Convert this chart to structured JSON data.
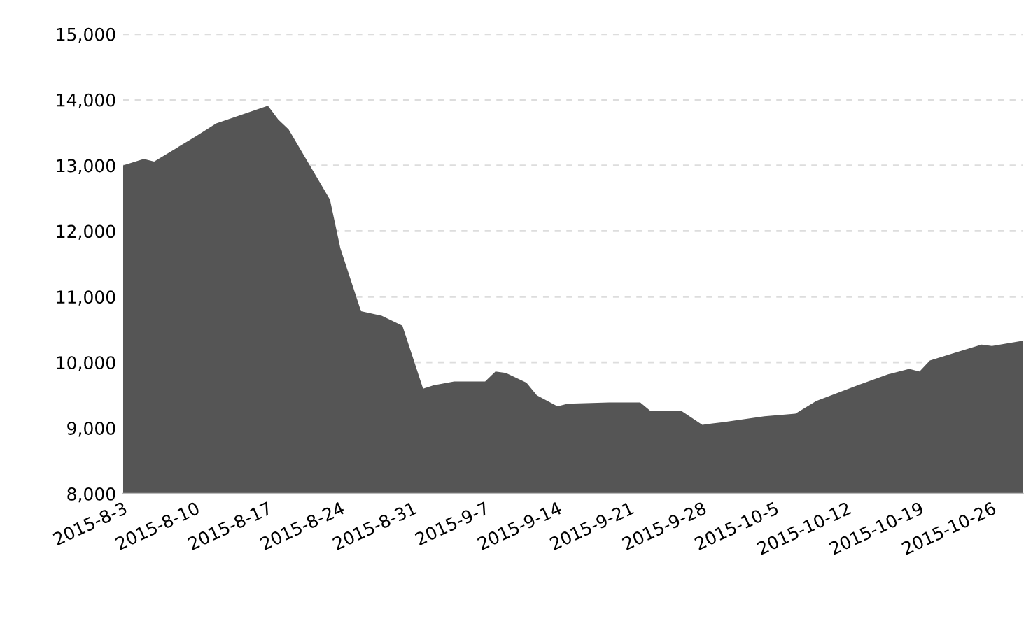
{
  "chart_data": {
    "type": "area",
    "color": "#555555",
    "x": [
      "2015-08-03",
      "2015-08-05",
      "2015-08-06",
      "2015-08-10",
      "2015-08-12",
      "2015-08-17",
      "2015-08-18",
      "2015-08-19",
      "2015-08-23",
      "2015-08-24",
      "2015-08-26",
      "2015-08-28",
      "2015-08-30",
      "2015-09-01",
      "2015-09-02",
      "2015-09-04",
      "2015-09-07",
      "2015-09-08",
      "2015-09-09",
      "2015-09-11",
      "2015-09-12",
      "2015-09-14",
      "2015-09-15",
      "2015-09-19",
      "2015-09-22",
      "2015-09-23",
      "2015-09-26",
      "2015-09-28",
      "2015-09-30",
      "2015-10-04",
      "2015-10-07",
      "2015-10-09",
      "2015-10-13",
      "2015-10-16",
      "2015-10-18",
      "2015-10-19",
      "2015-10-20",
      "2015-10-25",
      "2015-10-26",
      "2015-10-29"
    ],
    "values": [
      13000,
      13100,
      13060,
      13440,
      13640,
      13910,
      13700,
      13550,
      12480,
      11740,
      10780,
      10710,
      10560,
      9600,
      9650,
      9710,
      9710,
      9860,
      9840,
      9690,
      9500,
      9330,
      9370,
      9390,
      9390,
      9260,
      9260,
      9050,
      9090,
      9180,
      9220,
      9410,
      9650,
      9820,
      9900,
      9860,
      10030,
      10270,
      10250,
      10330
    ],
    "xlim": [
      "2015-08-03",
      "2015-10-29"
    ],
    "xticks": [
      {
        "value": "2015-08-03",
        "label": "2015-8-3"
      },
      {
        "value": "2015-08-10",
        "label": "2015-8-10"
      },
      {
        "value": "2015-08-17",
        "label": "2015-8-17"
      },
      {
        "value": "2015-08-24",
        "label": "2015-8-24"
      },
      {
        "value": "2015-08-31",
        "label": "2015-8-31"
      },
      {
        "value": "2015-09-07",
        "label": "2015-9-7"
      },
      {
        "value": "2015-09-14",
        "label": "2015-9-14"
      },
      {
        "value": "2015-09-21",
        "label": "2015-9-21"
      },
      {
        "value": "2015-09-28",
        "label": "2015-9-28"
      },
      {
        "value": "2015-10-05",
        "label": "2015-10-5"
      },
      {
        "value": "2015-10-12",
        "label": "2015-10-12"
      },
      {
        "value": "2015-10-19",
        "label": "2015-10-19"
      },
      {
        "value": "2015-10-26",
        "label": "2015-10-26"
      }
    ],
    "ylim": [
      8000,
      15000
    ],
    "yticks": [
      {
        "value": 8000,
        "label": "8,000"
      },
      {
        "value": 9000,
        "label": "9,000"
      },
      {
        "value": 10000,
        "label": "10,000"
      },
      {
        "value": 11000,
        "label": "11,000"
      },
      {
        "value": 12000,
        "label": "12,000"
      },
      {
        "value": 13000,
        "label": "13,000"
      },
      {
        "value": 14000,
        "label": "14,000"
      },
      {
        "value": 15000,
        "label": "15,000"
      }
    ],
    "grid": "y"
  }
}
